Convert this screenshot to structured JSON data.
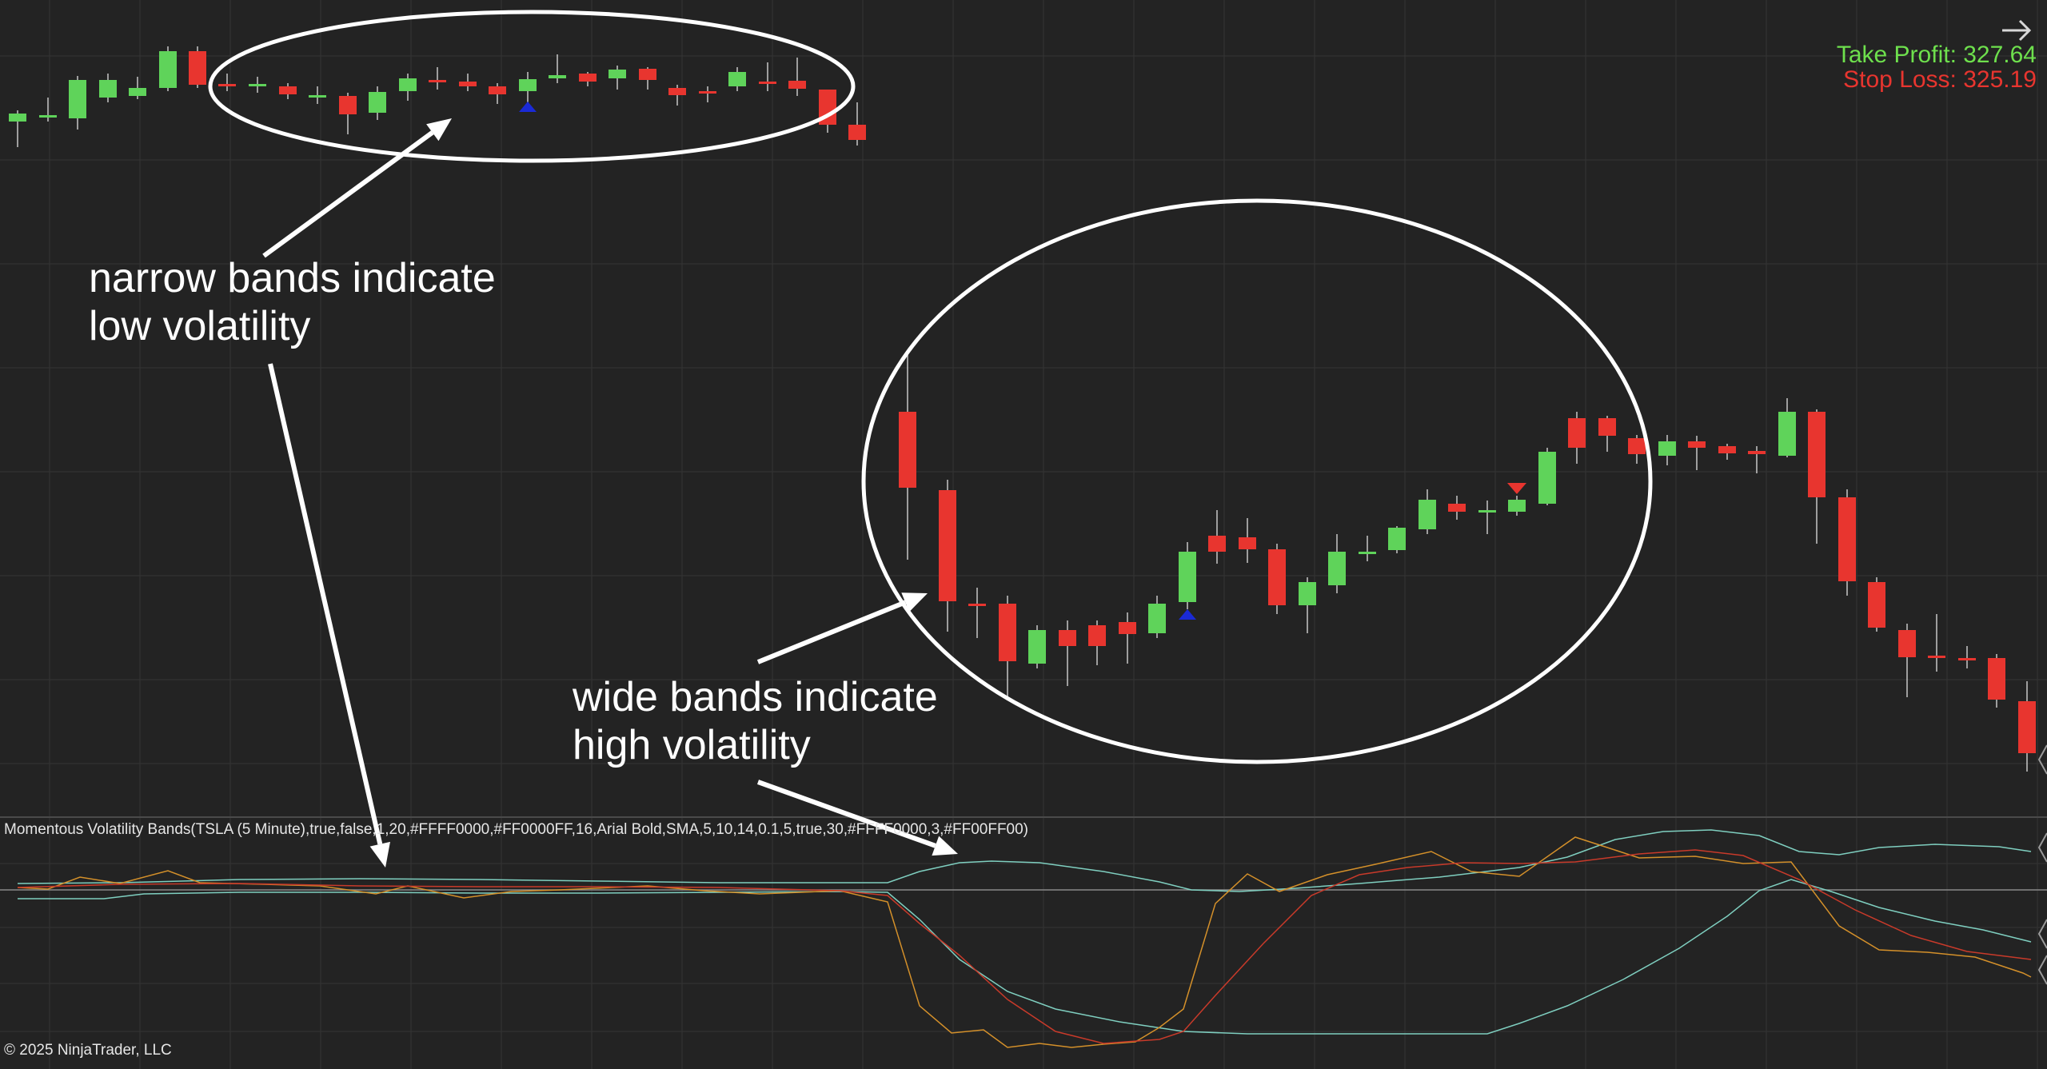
{
  "colors": {
    "background": "#232323",
    "grid": "#343434",
    "bull": "#5fd35a",
    "bear": "#e8352f",
    "wick": "#c8c8c8",
    "annotation": "#ffffff",
    "take_profit": "#6ee04d",
    "stop_loss": "#e8352f",
    "up_signal": "#1a2ad6",
    "down_signal": "#e8352f",
    "teal_line": "#7fcfc0",
    "orange_line": "#d4902a",
    "red_line": "#c83a2a"
  },
  "header": {
    "take_profit": "Take Profit: 327.64",
    "stop_loss": "Stop Loss: 325.19",
    "nav_icon": "right-arrow-icon"
  },
  "annotations": {
    "narrow_line1": "narrow bands indicate",
    "narrow_line2": "low volatility",
    "wide_line1": "wide bands indicate",
    "wide_line2": "high volatility"
  },
  "indicator": {
    "label": "Momentous Volatility Bands(TSLA (5 Minute),true,false,1,20,#FFFF0000,#FF0000FF,16,Arial Bold,SMA,5,10,14,0.1,5,true,30,#FFFF0000,3,#FF00FF00)"
  },
  "footer": {
    "copyright": "© 2025 NinjaTrader, LLC"
  }
}
